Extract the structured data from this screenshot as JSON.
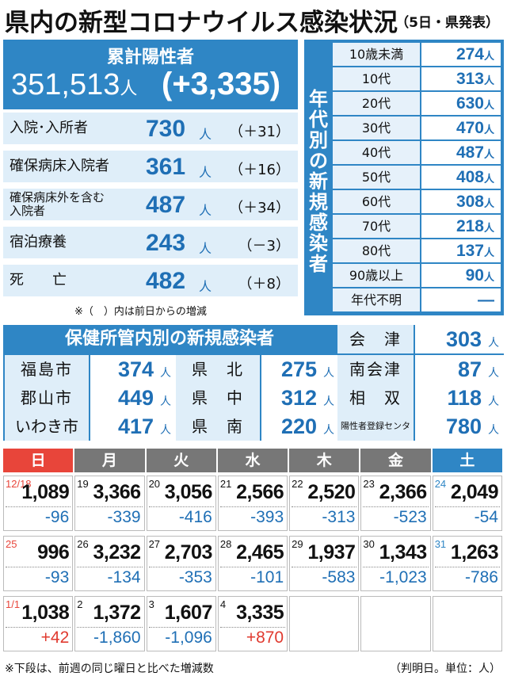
{
  "header": {
    "title": "県内の新型コロナウイルス感染状況",
    "subtitle": "（5日・県発表）"
  },
  "cumulative": {
    "label": "累計陽性者",
    "value": "351,513",
    "unit": "人",
    "diff": "(+3,335)"
  },
  "categories": [
    {
      "label": "入院･入所者",
      "value": "730",
      "unit": "人",
      "change": "（＋31）"
    },
    {
      "label": "確保病床入院者",
      "value": "361",
      "unit": "人",
      "change": "（＋16）"
    },
    {
      "label": "確保病床外を含む入院者",
      "value": "487",
      "unit": "人",
      "change": "（＋34）"
    },
    {
      "label": "宿泊療養",
      "value": "243",
      "unit": "人",
      "change": "（－3）"
    },
    {
      "label": "死　　亡",
      "value": "482",
      "unit": "人",
      "change": "（＋8）"
    }
  ],
  "note_parentheses": "※（　）内は前日からの増減",
  "age": {
    "label": "年代別の新規感染者",
    "rows": [
      {
        "label": "10歳未満",
        "value": "274",
        "unit": "人"
      },
      {
        "label": "10代",
        "value": "313",
        "unit": "人"
      },
      {
        "label": "20代",
        "value": "630",
        "unit": "人"
      },
      {
        "label": "30代",
        "value": "470",
        "unit": "人"
      },
      {
        "label": "40代",
        "value": "487",
        "unit": "人"
      },
      {
        "label": "50代",
        "value": "408",
        "unit": "人"
      },
      {
        "label": "60代",
        "value": "308",
        "unit": "人"
      },
      {
        "label": "70代",
        "value": "218",
        "unit": "人"
      },
      {
        "label": "80代",
        "value": "137",
        "unit": "人"
      },
      {
        "label": "90歳以上",
        "value": "90",
        "unit": "人"
      },
      {
        "label": "年代不明",
        "value": "—",
        "unit": ""
      }
    ]
  },
  "health_office": {
    "title": "保健所管内別の新規感染者",
    "items": [
      {
        "label": "会　津",
        "value": "303",
        "unit": "人"
      },
      {
        "label": "福島市",
        "value": "374",
        "unit": "人"
      },
      {
        "label": "県　北",
        "value": "275",
        "unit": "人"
      },
      {
        "label": "南会津",
        "value": "87",
        "unit": "人"
      },
      {
        "label": "郡山市",
        "value": "449",
        "unit": "人"
      },
      {
        "label": "県　中",
        "value": "312",
        "unit": "人"
      },
      {
        "label": "相　双",
        "value": "118",
        "unit": "人"
      },
      {
        "label": "いわき市",
        "value": "417",
        "unit": "人"
      },
      {
        "label": "県　南",
        "value": "220",
        "unit": "人"
      },
      {
        "label": "陽性者登録センター",
        "value": "780",
        "unit": "人"
      }
    ]
  },
  "calendar": {
    "days": [
      "日",
      "月",
      "火",
      "水",
      "木",
      "金",
      "土"
    ],
    "day_colors": [
      "#e8453a",
      "#777777",
      "#777777",
      "#777777",
      "#777777",
      "#777777",
      "#2f86c5"
    ],
    "weeks": [
      [
        {
          "date": "12/18",
          "total": "1,089",
          "diff": "-96"
        },
        {
          "date": "19",
          "total": "3,366",
          "diff": "-339"
        },
        {
          "date": "20",
          "total": "3,056",
          "diff": "-416"
        },
        {
          "date": "21",
          "total": "2,566",
          "diff": "-393"
        },
        {
          "date": "22",
          "total": "2,520",
          "diff": "-313"
        },
        {
          "date": "23",
          "total": "2,366",
          "diff": "-523"
        },
        {
          "date": "24",
          "total": "2,049",
          "diff": "-54"
        }
      ],
      [
        {
          "date": "25",
          "total": "996",
          "diff": "-93"
        },
        {
          "date": "26",
          "total": "3,232",
          "diff": "-134"
        },
        {
          "date": "27",
          "total": "2,703",
          "diff": "-353"
        },
        {
          "date": "28",
          "total": "2,465",
          "diff": "-101"
        },
        {
          "date": "29",
          "total": "1,937",
          "diff": "-583"
        },
        {
          "date": "30",
          "total": "1,343",
          "diff": "-1,023"
        },
        {
          "date": "31",
          "total": "1,263",
          "diff": "-786"
        }
      ],
      [
        {
          "date": "1/1",
          "total": "1,038",
          "diff": "+42"
        },
        {
          "date": "2",
          "total": "1,372",
          "diff": "-1,860"
        },
        {
          "date": "3",
          "total": "1,607",
          "diff": "-1,096"
        },
        {
          "date": "4",
          "total": "3,335",
          "diff": "+870"
        },
        {
          "date": "",
          "total": "",
          "diff": ""
        },
        {
          "date": "",
          "total": "",
          "diff": ""
        },
        {
          "date": "",
          "total": "",
          "diff": ""
        }
      ]
    ]
  },
  "footer": {
    "note": "※下段は、前週の同じ曜日と比べた増減数",
    "source": "（判明日。単位：人）"
  }
}
